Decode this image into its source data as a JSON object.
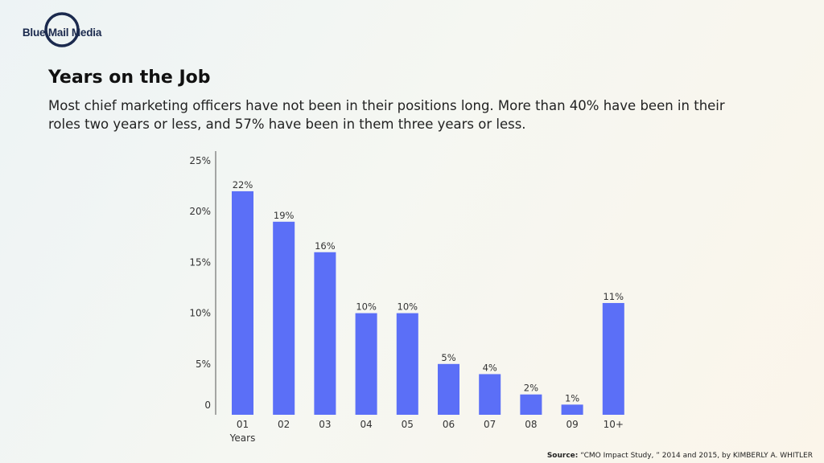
{
  "brand": {
    "name": "Blue Mail Media",
    "color": "#1b2a4e"
  },
  "header": {
    "title": "Years on the Job",
    "subtitle": "Most chief marketing officers have not been in their positions long. More than 40% have been in their roles two years or less, and 57% have been in them three years or less."
  },
  "footer": {
    "source_label": "Source:",
    "source_text": "“CMO Impact Study, ” 2014 and 2015, by KIMBERLY A. WHITLER"
  },
  "chart_data": {
    "type": "bar",
    "title": "Years on the Job",
    "xlabel": "Years",
    "ylabel": "",
    "categories": [
      "01",
      "02",
      "03",
      "04",
      "05",
      "06",
      "07",
      "08",
      "09",
      "10+"
    ],
    "values": [
      22,
      19,
      16,
      10,
      10,
      5,
      4,
      2,
      1,
      11
    ],
    "value_labels": [
      "22%",
      "19%",
      "16%",
      "10%",
      "10%",
      "5%",
      "4%",
      "2%",
      "1%",
      "11%"
    ],
    "ylim": [
      0,
      25
    ],
    "yticks": [
      0,
      5,
      10,
      15,
      20,
      25
    ],
    "ytick_labels": [
      "0",
      "5%",
      "10%",
      "15%",
      "20%",
      "25%"
    ],
    "grid": false,
    "legend": "none",
    "bar_color": "#5b6ff7"
  }
}
